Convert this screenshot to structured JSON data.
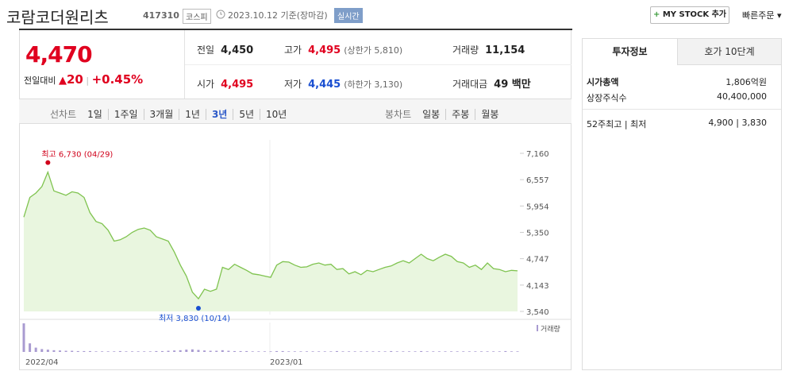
{
  "header": {
    "name": "코람코더원리츠",
    "code": "417310",
    "market": "코스피",
    "date": "2023.10.12 기준(장마감)",
    "realtime": "실시간",
    "mystock": "MY STOCK 추가",
    "quick_order": "빠른주문"
  },
  "quote": {
    "price": "4,470",
    "change_label": "전일대비",
    "change": "20",
    "change_pct": "+0.45%"
  },
  "summary": [
    {
      "label": "전일",
      "value": "4,450",
      "note": "",
      "color": "#222222"
    },
    {
      "label": "고가",
      "value": "4,495",
      "note": "(상한가 5,810)",
      "color": "#e0001f"
    },
    {
      "label": "거래량",
      "value": "11,154",
      "note": "",
      "color": "#222222"
    },
    {
      "label": "시가",
      "value": "4,495",
      "note": "",
      "color": "#e0001f"
    },
    {
      "label": "저가",
      "value": "4,445",
      "note": "(하한가 3,130)",
      "color": "#1a4fd1"
    },
    {
      "label": "거래대금",
      "value": "49 백만",
      "note": "",
      "color": "#222222"
    }
  ],
  "periods": {
    "line_label": "선차트",
    "line": [
      "1일",
      "1주일",
      "3개월",
      "1년",
      "3년",
      "5년",
      "10년"
    ],
    "selected": "3년",
    "candle_label": "봉차트",
    "candle": [
      "일봉",
      "주봉",
      "월봉"
    ]
  },
  "chart_data": {
    "type": "line",
    "color": "#7fc34f",
    "values": [
      5700,
      6150,
      6250,
      6400,
      6730,
      6300,
      6250,
      6200,
      6280,
      6250,
      6150,
      5800,
      5600,
      5550,
      5400,
      5150,
      5180,
      5250,
      5350,
      5420,
      5450,
      5400,
      5250,
      5200,
      5150,
      4900,
      4600,
      4350,
      3980,
      3830,
      4050,
      4000,
      4050,
      4550,
      4500,
      4620,
      4550,
      4480,
      4400,
      4380,
      4350,
      4320,
      4600,
      4680,
      4670,
      4600,
      4550,
      4560,
      4620,
      4650,
      4600,
      4620,
      4500,
      4520,
      4400,
      4450,
      4380,
      4480,
      4450,
      4500,
      4550,
      4580,
      4650,
      4700,
      4650,
      4750,
      4850,
      4750,
      4700,
      4780,
      4850,
      4800,
      4680,
      4650,
      4550,
      4600,
      4500,
      4650,
      4520,
      4500,
      4450,
      4480,
      4470
    ],
    "ylim": [
      3540,
      7160
    ],
    "yticks": [
      {
        "value": 3540,
        "label": "3,540"
      },
      {
        "value": 4143,
        "label": "4,143"
      },
      {
        "value": 4747,
        "label": "4,747"
      },
      {
        "value": 5350,
        "label": "5,350"
      },
      {
        "value": 5954,
        "label": "5,954"
      },
      {
        "value": 6557,
        "label": "6,557"
      },
      {
        "value": 7160,
        "label": "7,160"
      }
    ],
    "annotations": [
      {
        "text": "최고 6,730 (04/29)",
        "value": 6730,
        "color": "#d0021b"
      },
      {
        "text": "최저 3,830 (10/14)",
        "value": 3830,
        "color": "#1a4fd1"
      }
    ],
    "volume": {
      "name": "거래량",
      "color": "#a99bd1",
      "values": [
        100,
        30,
        15,
        10,
        8,
        6,
        5,
        4,
        4,
        3,
        3,
        3,
        2,
        2,
        2,
        2,
        3,
        2,
        2,
        2,
        2,
        2,
        3,
        3,
        4,
        5,
        6,
        8,
        9,
        7,
        5,
        4,
        4,
        6,
        4,
        3,
        3,
        3,
        2,
        2,
        2,
        2,
        3,
        3,
        2,
        2,
        2,
        2,
        2,
        2,
        2,
        2,
        3,
        2,
        2,
        2,
        2,
        2,
        2,
        2,
        2,
        3,
        2,
        2,
        2,
        2,
        3,
        2,
        2,
        2,
        2,
        2,
        2,
        2,
        2,
        2,
        2,
        2,
        2,
        2,
        3,
        2,
        2
      ]
    },
    "x_labels": [
      "2022/04",
      "2023/01"
    ]
  },
  "invest": {
    "tabs": [
      "투자정보",
      "호가 10단계"
    ],
    "rows": [
      {
        "label": "시가총액",
        "value": "1,806억원"
      },
      {
        "label": "상장주식수",
        "value": "40,400,000"
      },
      {
        "label": "52주최고 | 최저",
        "value": "4,900 | 3,830"
      }
    ]
  }
}
